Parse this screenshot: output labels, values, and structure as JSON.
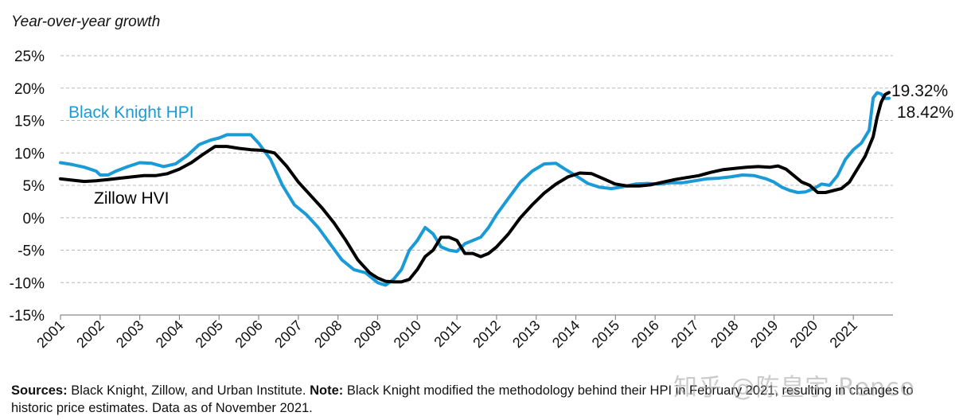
{
  "chart_data": {
    "type": "line",
    "ylabel": "Year-over-year growth",
    "ylim": [
      -15,
      25
    ],
    "yticks": [
      25,
      20,
      15,
      10,
      5,
      0,
      -5,
      -10,
      -15
    ],
    "ytick_labels": [
      "25%",
      "20%",
      "15%",
      "10%",
      "5%",
      "0%",
      "-5%",
      "-10%",
      "-15%"
    ],
    "xlim": [
      2001.0,
      2022.0
    ],
    "xticks": [
      2001,
      2002,
      2003,
      2004,
      2005,
      2006,
      2007,
      2008,
      2009,
      2010,
      2011,
      2012,
      2013,
      2014,
      2015,
      2016,
      2017,
      2018,
      2019,
      2020,
      2021
    ],
    "xtick_labels": [
      "2001",
      "2002",
      "2003",
      "2004",
      "2005",
      "2006",
      "2007",
      "2008",
      "2009",
      "2010",
      "2011",
      "2012",
      "2013",
      "2014",
      "2015",
      "2016",
      "2017",
      "2018",
      "2019",
      "2020",
      "2021"
    ],
    "grid": true,
    "series": [
      {
        "name": "Black Knight HPI",
        "color": "#1a9ad6",
        "end_label": "18.42%",
        "x": [
          2001.0,
          2001.3,
          2001.6,
          2001.9,
          2002.0,
          2002.2,
          2002.4,
          2002.7,
          2003.0,
          2003.3,
          2003.6,
          2003.9,
          2004.2,
          2004.5,
          2004.8,
          2005.0,
          2005.2,
          2005.5,
          2005.8,
          2006.0,
          2006.3,
          2006.6,
          2006.9,
          2007.2,
          2007.5,
          2007.8,
          2008.1,
          2008.4,
          2008.7,
          2009.0,
          2009.2,
          2009.4,
          2009.6,
          2009.8,
          2010.0,
          2010.2,
          2010.4,
          2010.6,
          2010.8,
          2011.0,
          2011.2,
          2011.4,
          2011.6,
          2011.8,
          2012.0,
          2012.3,
          2012.6,
          2012.9,
          2013.2,
          2013.5,
          2013.7,
          2014.0,
          2014.3,
          2014.6,
          2014.9,
          2015.2,
          2015.5,
          2015.8,
          2016.1,
          2016.4,
          2016.7,
          2017.0,
          2017.3,
          2017.6,
          2017.9,
          2018.2,
          2018.5,
          2018.8,
          2019.0,
          2019.2,
          2019.4,
          2019.6,
          2019.8,
          2020.0,
          2020.2,
          2020.4,
          2020.6,
          2020.8,
          2021.0,
          2021.2,
          2021.4,
          2021.5,
          2021.6,
          2021.7,
          2021.8,
          2021.9
        ],
        "values": [
          8.5,
          8.2,
          7.8,
          7.2,
          6.6,
          6.6,
          7.2,
          7.9,
          8.5,
          8.4,
          7.9,
          8.3,
          9.6,
          11.3,
          12.0,
          12.3,
          12.8,
          12.8,
          12.8,
          11.5,
          9.0,
          5.0,
          2.0,
          0.5,
          -1.5,
          -4.0,
          -6.5,
          -8.0,
          -8.5,
          -10.0,
          -10.4,
          -9.5,
          -8.0,
          -5.0,
          -3.5,
          -1.5,
          -2.5,
          -4.5,
          -5.0,
          -5.2,
          -4.0,
          -3.5,
          -3.0,
          -1.5,
          0.5,
          3.0,
          5.5,
          7.2,
          8.3,
          8.4,
          7.6,
          6.5,
          5.3,
          4.7,
          4.5,
          4.8,
          5.2,
          5.3,
          5.2,
          5.4,
          5.4,
          5.7,
          6.0,
          6.1,
          6.3,
          6.6,
          6.5,
          6.0,
          5.5,
          4.7,
          4.2,
          3.9,
          4.0,
          4.5,
          5.2,
          5.0,
          6.5,
          9.0,
          10.5,
          11.5,
          13.5,
          18.5,
          19.3,
          19.1,
          18.4,
          18.42
        ]
      },
      {
        "name": "Zillow HVI",
        "color": "#000000",
        "end_label": "19.32%",
        "x": [
          2001.0,
          2001.3,
          2001.6,
          2001.9,
          2002.2,
          2002.5,
          2002.8,
          2003.1,
          2003.4,
          2003.7,
          2004.0,
          2004.3,
          2004.6,
          2004.9,
          2005.2,
          2005.5,
          2005.8,
          2006.1,
          2006.4,
          2006.7,
          2007.0,
          2007.3,
          2007.6,
          2007.9,
          2008.2,
          2008.5,
          2008.8,
          2009.0,
          2009.2,
          2009.4,
          2009.6,
          2009.8,
          2010.0,
          2010.2,
          2010.4,
          2010.6,
          2010.8,
          2011.0,
          2011.2,
          2011.4,
          2011.6,
          2011.8,
          2012.0,
          2012.3,
          2012.6,
          2012.9,
          2013.2,
          2013.5,
          2013.8,
          2014.1,
          2014.4,
          2014.7,
          2015.0,
          2015.3,
          2015.6,
          2015.9,
          2016.2,
          2016.5,
          2016.8,
          2017.1,
          2017.4,
          2017.7,
          2018.0,
          2018.3,
          2018.6,
          2018.9,
          2019.1,
          2019.3,
          2019.5,
          2019.7,
          2019.9,
          2020.1,
          2020.3,
          2020.5,
          2020.7,
          2020.9,
          2021.1,
          2021.3,
          2021.5,
          2021.6,
          2021.7,
          2021.8,
          2021.9
        ],
        "values": [
          6.0,
          5.8,
          5.6,
          5.7,
          5.9,
          6.1,
          6.3,
          6.5,
          6.5,
          6.8,
          7.5,
          8.5,
          9.8,
          11.0,
          11.0,
          10.7,
          10.5,
          10.4,
          10.0,
          8.0,
          5.5,
          3.5,
          1.5,
          -0.8,
          -3.5,
          -6.5,
          -8.5,
          -9.3,
          -9.8,
          -9.9,
          -9.9,
          -9.5,
          -8.0,
          -6.0,
          -5.0,
          -3.0,
          -3.0,
          -3.5,
          -5.5,
          -5.5,
          -6.0,
          -5.5,
          -4.5,
          -2.5,
          0.0,
          2.0,
          3.8,
          5.2,
          6.3,
          6.9,
          6.8,
          6.0,
          5.2,
          4.9,
          4.9,
          5.1,
          5.5,
          5.9,
          6.2,
          6.5,
          7.0,
          7.4,
          7.6,
          7.8,
          7.9,
          7.8,
          8.0,
          7.5,
          6.5,
          5.5,
          5.0,
          3.9,
          3.9,
          4.2,
          4.5,
          5.5,
          7.5,
          9.5,
          12.5,
          15.5,
          17.8,
          19.0,
          19.32
        ]
      }
    ],
    "series_labels": [
      "Black Knight HPI",
      "Zillow HVI"
    ]
  },
  "footnote": {
    "sources_label": "Sources:",
    "sources_text": "Black Knight, Zillow, and Urban Institute.",
    "note_label": "Note:",
    "note_text": "Black Knight modified the methodology behind their HPI in February 2021, resulting in changes to historic price estimates. Data as of November 2021."
  },
  "watermark": "知乎 @陈皇宇 Renco"
}
